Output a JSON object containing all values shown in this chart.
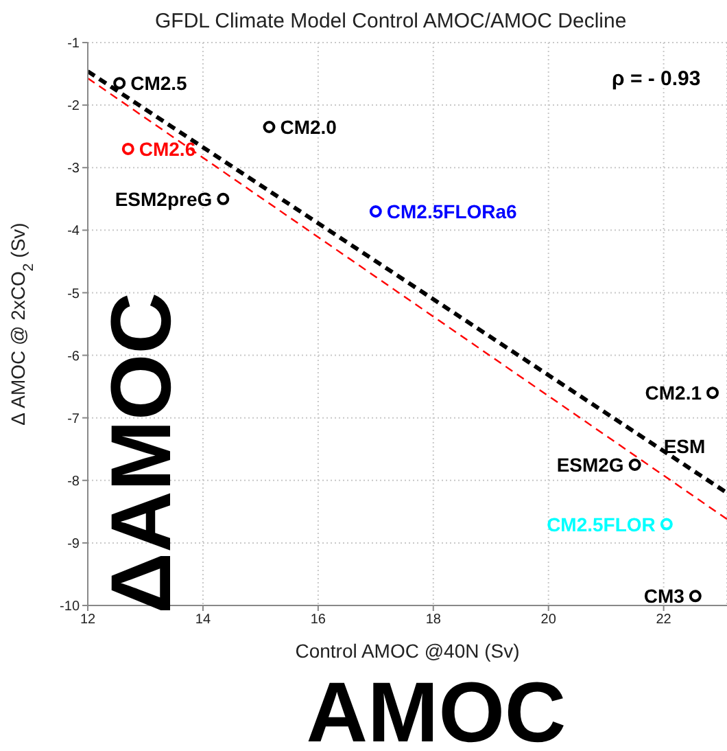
{
  "chart_data": {
    "type": "scatter",
    "title": "GFDL Climate Model Control AMOC/AMOC Decline",
    "xlabel": "Control AMOC @40N (Sv)",
    "ylabel": "Δ AMOC @ 2xCO$_{2}$ (Sv)",
    "xlim": [
      12,
      23.1
    ],
    "ylim": [
      -10,
      -1
    ],
    "xticks": [
      12,
      14,
      16,
      18,
      20,
      22
    ],
    "yticks": [
      -1,
      -2,
      -3,
      -4,
      -5,
      -6,
      -7,
      -8,
      -9,
      -10
    ],
    "grid": true,
    "marker": "circle",
    "series": [
      {
        "name": "CM2.5",
        "color": "#000000",
        "x": [
          12.55
        ],
        "values": [
          -1.65
        ]
      },
      {
        "name": "CM2.0",
        "color": "#000000",
        "x": [
          15.15
        ],
        "values": [
          -2.35
        ]
      },
      {
        "name": "CM2.6",
        "color": "#ff0000",
        "x": [
          12.7
        ],
        "values": [
          -2.7
        ]
      },
      {
        "name": "ESM2preG",
        "color": "#000000",
        "x": [
          14.35
        ],
        "values": [
          -3.5
        ]
      },
      {
        "name": "CM2.5FLORa6",
        "color": "#0000ff",
        "x": [
          17.0
        ],
        "values": [
          -3.7
        ]
      },
      {
        "name": "CM2.1",
        "color": "#000000",
        "x": [
          22.85
        ],
        "values": [
          -6.6
        ]
      },
      {
        "name": "ESM2G",
        "color": "#000000",
        "x": [
          21.5
        ],
        "values": [
          -7.75
        ]
      },
      {
        "name": "CM2.5FLOR",
        "color": "#00ffff",
        "x": [
          22.05
        ],
        "values": [
          -8.7
        ]
      },
      {
        "name": "CM3",
        "color": "#000000",
        "x": [
          22.55
        ],
        "values": [
          -9.85
        ]
      },
      {
        "type": "line",
        "color": "#000000",
        "line_style": "dashed",
        "marker": "none",
        "x": [
          12,
          23.1
        ],
        "values": [
          -1.46,
          -8.2
        ]
      },
      {
        "type": "line",
        "color": "#ff0000",
        "line_style": "dashed",
        "marker": "none",
        "x": [
          12,
          23.1
        ],
        "values": [
          -1.57,
          -8.62
        ]
      }
    ],
    "annotations": [
      "ρ = - 0.93",
      {
        "text": "ESM",
        "x": 22.0,
        "y": -7.45
      },
      "ΔAMOC",
      "AMOC"
    ]
  }
}
